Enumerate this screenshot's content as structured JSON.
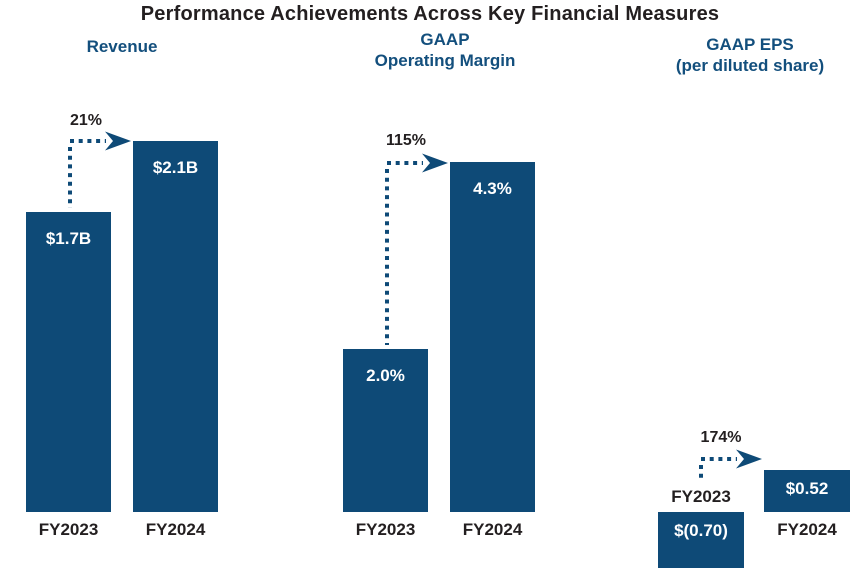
{
  "title": "Performance Achievements Across Key Financial Measures",
  "colors": {
    "background": "#ffffff",
    "bar": "#0e4a77",
    "arrow": "#0e4a77",
    "header_text": "#134f7d",
    "title_text": "#231f20",
    "label_text": "#231f20",
    "value_text": "#ffffff"
  },
  "chart_data": [
    {
      "type": "bar",
      "title_lines": [
        "Revenue"
      ],
      "categories": [
        "FY2023",
        "FY2024"
      ],
      "values": [
        1.7,
        2.1
      ],
      "value_labels": [
        "$1.7B",
        "$2.1B"
      ],
      "growth_label": "21%",
      "ylim": [
        0,
        2.3
      ],
      "grid": false,
      "legend": false
    },
    {
      "type": "bar",
      "title_lines": [
        "GAAP",
        "Operating Margin"
      ],
      "categories": [
        "FY2023",
        "FY2024"
      ],
      "values": [
        2.0,
        4.3
      ],
      "value_labels": [
        "2.0%",
        "4.3%"
      ],
      "growth_label": "115%",
      "ylim": [
        0,
        4.3
      ],
      "grid": false,
      "legend": false
    },
    {
      "type": "bar",
      "title_lines": [
        "GAAP EPS",
        "(per diluted share)"
      ],
      "categories": [
        "FY2023",
        "FY2024"
      ],
      "values": [
        -0.7,
        0.52
      ],
      "value_labels": [
        "$(0.70)",
        "$0.52"
      ],
      "growth_label": "174%",
      "ylim": [
        -0.75,
        0.6
      ],
      "grid": false,
      "legend": false
    }
  ]
}
